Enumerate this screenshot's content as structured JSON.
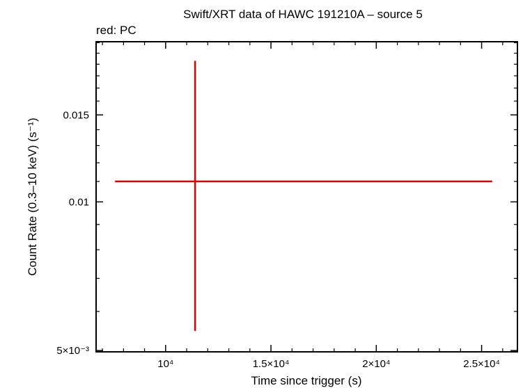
{
  "chart_data": {
    "type": "scatter",
    "title": "Swift/XRT data of HAWC 191210A – source 5",
    "subtitle": "red: PC",
    "xlabel": "Time since trigger (s)",
    "ylabel": "Count Rate (0.3–10 keV) (s⁻¹)",
    "x_scale": "linear",
    "y_scale": "log",
    "xlim": [
      6700,
      26700
    ],
    "ylim": [
      0.00497,
      0.0211
    ],
    "x_ticks": [
      {
        "value": 10000,
        "label": "10⁴"
      },
      {
        "value": 15000,
        "label": "1.5×10⁴"
      },
      {
        "value": 20000,
        "label": "2×10⁴"
      },
      {
        "value": 25000,
        "label": "2.5×10⁴"
      }
    ],
    "y_ticks": [
      {
        "value": 0.005,
        "label": "5×10⁻³"
      },
      {
        "value": 0.01,
        "label": "0.01"
      },
      {
        "value": 0.015,
        "label": "0.015"
      }
    ],
    "series": [
      {
        "name": "PC",
        "color": "#e00000",
        "points": [
          {
            "x": 11400,
            "x_low": 7600,
            "x_high": 25500,
            "y": 0.011,
            "y_low": 0.00548,
            "y_high": 0.0193
          }
        ]
      }
    ]
  }
}
